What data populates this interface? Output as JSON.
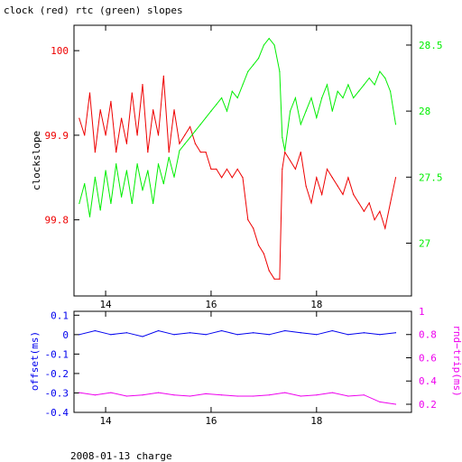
{
  "title": "clock (red) rtc (green) slopes",
  "footer": "2008-01-13 charge",
  "colors": {
    "red": "#ee0000",
    "green": "#00ee00",
    "blue": "#0000ee",
    "magenta": "#ee00ee",
    "axis": "#000000"
  },
  "chart_data": [
    {
      "type": "line",
      "title": "clock (red) rtc (green) slopes",
      "xlabel": "",
      "ylabel": "clockslope",
      "xlim": [
        13.4,
        19.8
      ],
      "xticks": [
        14,
        16,
        18
      ],
      "ylim": [
        99.71,
        100.03
      ],
      "yticks": [
        99.8,
        99.9,
        100
      ],
      "y2label": "",
      "y2lim": [
        26.6,
        28.65
      ],
      "y2ticks": [
        27,
        27.5,
        28,
        28.5
      ],
      "grid": false,
      "series": [
        {
          "name": "clock",
          "axis": "left",
          "color": "red",
          "x": [
            13.5,
            13.6,
            13.7,
            13.8,
            13.9,
            14.0,
            14.1,
            14.2,
            14.3,
            14.4,
            14.5,
            14.6,
            14.7,
            14.8,
            14.9,
            15.0,
            15.1,
            15.2,
            15.3,
            15.4,
            15.5,
            15.6,
            15.7,
            15.8,
            15.9,
            16.0,
            16.1,
            16.2,
            16.3,
            16.4,
            16.5,
            16.6,
            16.7,
            16.8,
            16.9,
            17.0,
            17.1,
            17.2,
            17.3,
            17.35,
            17.4,
            17.5,
            17.6,
            17.7,
            17.8,
            17.9,
            18.0,
            18.1,
            18.2,
            18.3,
            18.4,
            18.5,
            18.6,
            18.7,
            18.8,
            18.9,
            19.0,
            19.1,
            19.2,
            19.3,
            19.4,
            19.5
          ],
          "y": [
            99.92,
            99.9,
            99.95,
            99.88,
            99.93,
            99.9,
            99.94,
            99.88,
            99.92,
            99.89,
            99.95,
            99.9,
            99.96,
            99.88,
            99.93,
            99.9,
            99.97,
            99.88,
            99.93,
            99.89,
            99.9,
            99.91,
            99.89,
            99.88,
            99.88,
            99.86,
            99.86,
            99.85,
            99.86,
            99.85,
            99.86,
            99.85,
            99.8,
            99.79,
            99.77,
            99.76,
            99.74,
            99.73,
            99.73,
            99.86,
            99.88,
            99.87,
            99.86,
            99.88,
            99.84,
            99.82,
            99.85,
            99.83,
            99.86,
            99.85,
            99.84,
            99.83,
            99.85,
            99.83,
            99.82,
            99.81,
            99.82,
            99.8,
            99.81,
            99.79,
            99.82,
            99.85
          ]
        },
        {
          "name": "rtc",
          "axis": "right",
          "color": "green",
          "x": [
            13.5,
            13.6,
            13.7,
            13.8,
            13.9,
            14.0,
            14.1,
            14.2,
            14.3,
            14.4,
            14.5,
            14.6,
            14.7,
            14.8,
            14.9,
            15.0,
            15.1,
            15.2,
            15.3,
            15.4,
            15.5,
            15.6,
            15.7,
            15.8,
            15.9,
            16.0,
            16.1,
            16.2,
            16.3,
            16.4,
            16.5,
            16.6,
            16.7,
            16.8,
            16.9,
            17.0,
            17.1,
            17.2,
            17.3,
            17.35,
            17.4,
            17.5,
            17.6,
            17.7,
            17.8,
            17.9,
            18.0,
            18.1,
            18.2,
            18.3,
            18.4,
            18.5,
            18.6,
            18.7,
            18.8,
            18.9,
            19.0,
            19.1,
            19.2,
            19.3,
            19.4,
            19.5
          ],
          "y": [
            27.3,
            27.45,
            27.2,
            27.5,
            27.25,
            27.55,
            27.3,
            27.6,
            27.35,
            27.55,
            27.3,
            27.6,
            27.4,
            27.55,
            27.3,
            27.6,
            27.45,
            27.65,
            27.5,
            27.7,
            27.75,
            27.8,
            27.85,
            27.9,
            27.95,
            28.0,
            28.05,
            28.1,
            28.0,
            28.15,
            28.1,
            28.2,
            28.3,
            28.35,
            28.4,
            28.5,
            28.55,
            28.5,
            28.3,
            27.8,
            27.7,
            28.0,
            28.1,
            27.9,
            28.0,
            28.1,
            27.95,
            28.1,
            28.2,
            28.0,
            28.15,
            28.1,
            28.2,
            28.1,
            28.15,
            28.2,
            28.25,
            28.2,
            28.3,
            28.25,
            28.15,
            27.9
          ]
        }
      ]
    },
    {
      "type": "line",
      "title": "",
      "xlabel": "",
      "ylabel": "offset(ms)",
      "xlim": [
        13.4,
        19.8
      ],
      "xticks": [
        14,
        16,
        18
      ],
      "ylim": [
        -0.4,
        0.12
      ],
      "yticks": [
        -0.4,
        -0.3,
        -0.2,
        -0.1,
        0,
        0.1
      ],
      "y2label": "rnd−trip(ms)",
      "y2lim": [
        0.13,
        1.0
      ],
      "y2ticks": [
        0.2,
        0.4,
        0.6,
        0.8,
        1
      ],
      "grid": false,
      "series": [
        {
          "name": "offset",
          "axis": "left",
          "color": "blue",
          "x": [
            13.5,
            13.8,
            14.1,
            14.4,
            14.7,
            15.0,
            15.3,
            15.6,
            15.9,
            16.2,
            16.5,
            16.8,
            17.1,
            17.4,
            17.7,
            18.0,
            18.3,
            18.6,
            18.9,
            19.2,
            19.5
          ],
          "y": [
            0.0,
            0.02,
            0.0,
            0.01,
            -0.01,
            0.02,
            0.0,
            0.01,
            0.0,
            0.02,
            0.0,
            0.01,
            0.0,
            0.02,
            0.01,
            0.0,
            0.02,
            0.0,
            0.01,
            0.0,
            0.01
          ]
        },
        {
          "name": "rnd-trip",
          "axis": "right",
          "color": "magenta",
          "x": [
            13.5,
            13.8,
            14.1,
            14.4,
            14.7,
            15.0,
            15.3,
            15.6,
            15.9,
            16.2,
            16.5,
            16.8,
            17.1,
            17.4,
            17.7,
            18.0,
            18.3,
            18.6,
            18.9,
            19.2,
            19.5
          ],
          "y": [
            0.3,
            0.28,
            0.3,
            0.27,
            0.28,
            0.3,
            0.28,
            0.27,
            0.29,
            0.28,
            0.27,
            0.27,
            0.28,
            0.3,
            0.27,
            0.28,
            0.3,
            0.27,
            0.28,
            0.22,
            0.2
          ]
        }
      ]
    }
  ]
}
